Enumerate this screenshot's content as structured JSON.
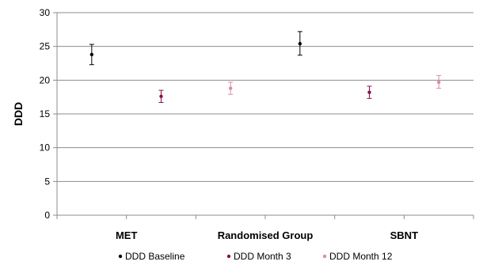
{
  "chart_data": {
    "type": "scatter",
    "ylabel": "DDD",
    "ylim": [
      0,
      30
    ],
    "yticks": [
      0,
      5,
      10,
      15,
      20,
      25,
      30
    ],
    "grid": true,
    "legend_position": "bottom",
    "x_slots": 6,
    "category_labels": [
      {
        "text": "MET",
        "slot": 1.5
      },
      {
        "text": "Randomised Group",
        "slot": 3.5
      },
      {
        "text": "SBNT",
        "slot": 5.5
      }
    ],
    "series": [
      {
        "name": "DDD Baseline",
        "color": "#000000",
        "points": [
          {
            "slot": 1,
            "y": 23.8,
            "low": 22.3,
            "high": 25.3
          },
          {
            "slot": 4,
            "y": 25.4,
            "low": 23.7,
            "high": 27.2
          }
        ]
      },
      {
        "name": "DDD Month 3",
        "color": "#8a0f4c",
        "points": [
          {
            "slot": 2,
            "y": 17.6,
            "low": 16.7,
            "high": 18.5
          },
          {
            "slot": 5,
            "y": 18.2,
            "low": 17.3,
            "high": 19.1
          }
        ]
      },
      {
        "name": "DDD Month 12",
        "color": "#d98ba8",
        "points": [
          {
            "slot": 3,
            "y": 18.8,
            "low": 17.9,
            "high": 19.7
          },
          {
            "slot": 6,
            "y": 19.7,
            "low": 18.8,
            "high": 20.7
          }
        ]
      }
    ]
  }
}
